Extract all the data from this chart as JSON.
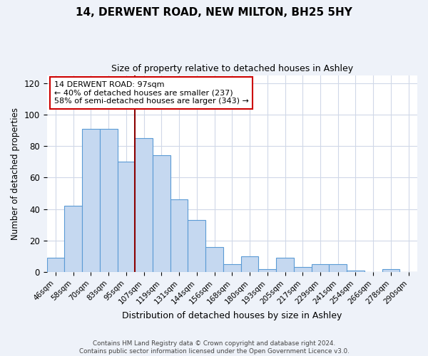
{
  "title": "14, DERWENT ROAD, NEW MILTON, BH25 5HY",
  "subtitle": "Size of property relative to detached houses in Ashley",
  "xlabel": "Distribution of detached houses by size in Ashley",
  "ylabel": "Number of detached properties",
  "bar_labels": [
    "46sqm",
    "58sqm",
    "70sqm",
    "83sqm",
    "95sqm",
    "107sqm",
    "119sqm",
    "131sqm",
    "144sqm",
    "156sqm",
    "168sqm",
    "180sqm",
    "193sqm",
    "205sqm",
    "217sqm",
    "229sqm",
    "241sqm",
    "254sqm",
    "266sqm",
    "278sqm",
    "290sqm"
  ],
  "bar_values": [
    9,
    42,
    91,
    91,
    70,
    85,
    74,
    46,
    33,
    16,
    5,
    10,
    2,
    9,
    3,
    5,
    5,
    1,
    0,
    2,
    0
  ],
  "bar_color": "#c5d8f0",
  "bar_edge_color": "#5b9bd5",
  "ylim": [
    0,
    125
  ],
  "yticks": [
    0,
    20,
    40,
    60,
    80,
    100,
    120
  ],
  "property_label": "14 DERWENT ROAD: 97sqm",
  "annotation_line1": "← 40% of detached houses are smaller (237)",
  "annotation_line2": "58% of semi-detached houses are larger (343) →",
  "vline_color": "#8b0000",
  "footer_line1": "Contains HM Land Registry data © Crown copyright and database right 2024.",
  "footer_line2": "Contains public sector information licensed under the Open Government Licence v3.0.",
  "background_color": "#eef2f9",
  "plot_bg_color": "#ffffff",
  "grid_color": "#d0d8e8"
}
